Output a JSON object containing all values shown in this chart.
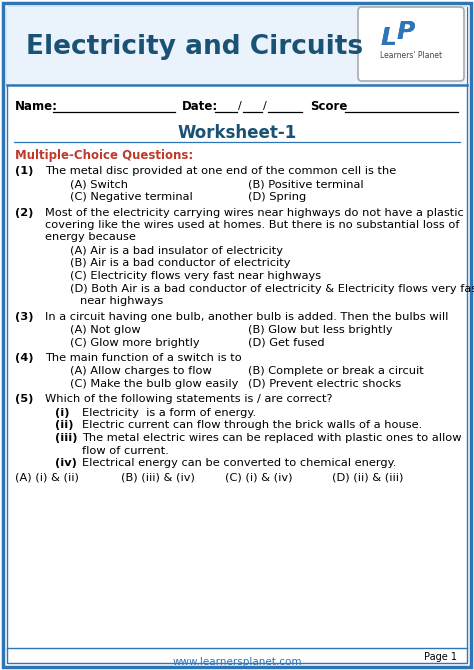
{
  "title_part1": "E",
  "title_part2": "LECTRICITY AND ",
  "title_part3": "C",
  "title_part4": "IRCUITS",
  "subtitle": "Worksheet-1",
  "subtitle_display": "Worksheet-1",
  "section_label": "Multiple-Choice Questions:",
  "footer": "www.learnersplanet.com",
  "page": "Page 1",
  "border_color": "#2e75b6",
  "title_color": "#1a5276",
  "section_color": "#c0392b",
  "text_color": "#000000",
  "subtitle_color": "#1a5276",
  "header_bg": "#eaf3fb",
  "bg_color": "#ffffff",
  "q1_num": "(1)",
  "q1_text": "The metal disc provided at one end of the common cell is the",
  "q1_opts": [
    "(A) Switch",
    "(B) Positive terminal",
    "(C) Negative terminal",
    "(D) Spring"
  ],
  "q2_num": "(2)",
  "q2_text1": "Most of the electricity carrying wires near highways do not have a plastic",
  "q2_text2": "covering like the wires used at homes. But there is no substantial loss of",
  "q2_text3": "energy because",
  "q2_opts": [
    "(A) Air is a bad insulator of electricity",
    "(B) Air is a bad conductor of electricity",
    "(C) Electricity flows very fast near highways",
    "(D) Both Air is a bad conductor of electricity & Electricity flows very fast",
    "      near highways"
  ],
  "q3_num": "(3)",
  "q3_text": "In a circuit having one bulb, another bulb is added. Then the bulbs will",
  "q3_opts": [
    "(A) Not glow",
    "(B) Glow but less brightly",
    "(C) Glow more brightly",
    "(D) Get fused"
  ],
  "q4_num": "(4)",
  "q4_text": "The main function of a switch is to",
  "q4_opts": [
    "(A) Allow charges to flow",
    "(B) Complete or break a circuit",
    "(C) Make the bulb glow easily",
    "(D) Prevent electric shocks"
  ],
  "q5_num": "(5)",
  "q5_text": "Which of the following statements is / are correct?",
  "q5_subs": [
    [
      "(i)",
      "Electricity  is a form of energy."
    ],
    [
      "(ii)",
      "Electric current can flow through the brick walls of a house."
    ],
    [
      "(iii)",
      "The metal electric wires can be replaced with plastic ones to allow"
    ],
    [
      "",
      "flow of current."
    ],
    [
      "(iv)",
      "Electrical energy can be converted to chemical energy."
    ]
  ],
  "q5_final": [
    "(A) (i) & (ii)",
    "(B) (iii) & (iv)",
    "(C) (i) & (iv)",
    "(D) (ii) & (iii)"
  ]
}
